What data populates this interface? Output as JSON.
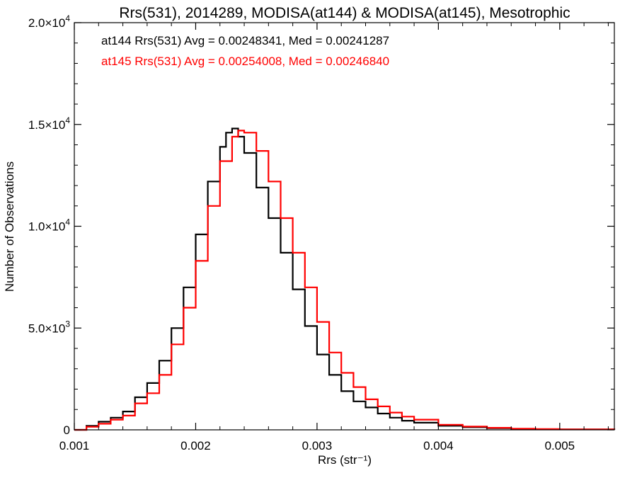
{
  "chart_data": {
    "type": "line",
    "title": "Rrs(531), 2014289, MODISA(at144) & MODISA(at145), Mesotrophic",
    "xlabel": "Rrs (str⁻¹)",
    "ylabel": "Number of Observations",
    "xlim": [
      0.001,
      0.00545
    ],
    "ylim": [
      0,
      20000
    ],
    "x_ticks": [
      {
        "value": 0.001,
        "label": "0.001"
      },
      {
        "value": 0.002,
        "label": "0.002"
      },
      {
        "value": 0.003,
        "label": "0.003"
      },
      {
        "value": 0.004,
        "label": "0.004"
      },
      {
        "value": 0.005,
        "label": "0.005"
      }
    ],
    "y_ticks": [
      {
        "value": 0,
        "mantissa": "0",
        "exp": ""
      },
      {
        "value": 5000,
        "mantissa": "5.0×10",
        "exp": "3"
      },
      {
        "value": 10000,
        "mantissa": "1.0×10",
        "exp": "4"
      },
      {
        "value": 15000,
        "mantissa": "1.5×10",
        "exp": "4"
      },
      {
        "value": 20000,
        "mantissa": "2.0×10",
        "exp": "4"
      }
    ],
    "grid": false,
    "legend_position": "top-left",
    "series": [
      {
        "name": "at144",
        "color": "#000000",
        "annotation": "at144 Rrs(531) Avg = 0.00248341, Med = 0.00241287",
        "x": [
          0.001,
          0.0011,
          0.0012,
          0.0013,
          0.0014,
          0.0015,
          0.0016,
          0.0017,
          0.0018,
          0.0019,
          0.002,
          0.0021,
          0.0022,
          0.00225,
          0.0023,
          0.00235,
          0.0024,
          0.0025,
          0.0026,
          0.0027,
          0.0028,
          0.0029,
          0.003,
          0.0031,
          0.0032,
          0.0033,
          0.0034,
          0.0035,
          0.0036,
          0.0037,
          0.0038,
          0.004,
          0.0042,
          0.0044,
          0.0046,
          0.0048,
          0.005,
          0.00545
        ],
        "y": [
          0,
          200,
          400,
          600,
          900,
          1600,
          2300,
          3400,
          5000,
          7000,
          9600,
          12200,
          13900,
          14600,
          14800,
          14400,
          13600,
          11900,
          10400,
          8700,
          6900,
          5100,
          3700,
          2700,
          1900,
          1400,
          1100,
          800,
          600,
          450,
          350,
          200,
          130,
          80,
          50,
          30,
          20,
          10
        ]
      },
      {
        "name": "at145",
        "color": "#ff0000",
        "annotation": "at145 Rrs(531) Avg = 0.00254008, Med = 0.00246840",
        "x": [
          0.001,
          0.0011,
          0.0012,
          0.0013,
          0.0014,
          0.0015,
          0.0016,
          0.0017,
          0.0018,
          0.0019,
          0.002,
          0.0021,
          0.0022,
          0.0023,
          0.00235,
          0.0024,
          0.0025,
          0.0026,
          0.0027,
          0.0028,
          0.0029,
          0.003,
          0.0031,
          0.0032,
          0.0033,
          0.0034,
          0.0035,
          0.0036,
          0.0037,
          0.0038,
          0.004,
          0.0042,
          0.0044,
          0.0046,
          0.0048,
          0.005,
          0.00545
        ],
        "y": [
          0,
          150,
          300,
          500,
          700,
          1300,
          1800,
          2700,
          4200,
          6000,
          8300,
          11000,
          13200,
          14400,
          14700,
          14600,
          13700,
          12200,
          10400,
          8700,
          7000,
          5300,
          3800,
          2800,
          2100,
          1500,
          1150,
          850,
          650,
          500,
          250,
          160,
          100,
          60,
          40,
          25,
          10
        ]
      }
    ]
  }
}
